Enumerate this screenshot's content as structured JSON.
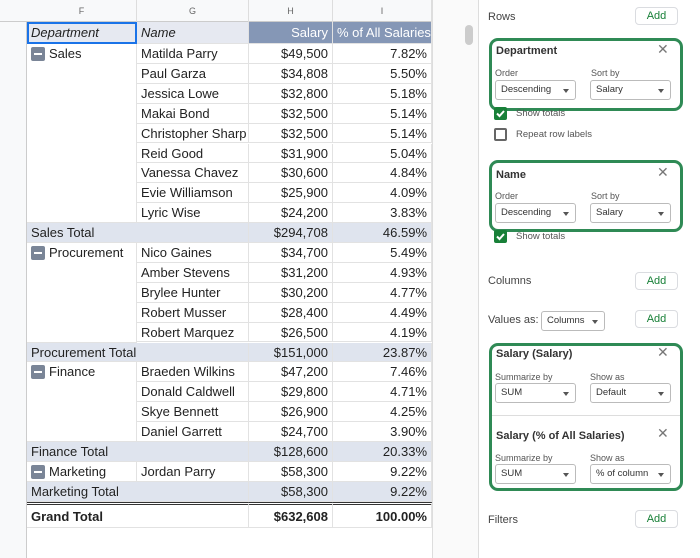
{
  "sheet": {
    "column_letters": [
      "F",
      "G",
      "H",
      "I"
    ],
    "header": [
      "Department",
      "Name",
      "Salary",
      "% of All Salaries"
    ],
    "groups": [
      {
        "department": "Sales",
        "rows": [
          [
            "Matilda Parry",
            "$49,500",
            "7.82%"
          ],
          [
            "Paul Garza",
            "$34,808",
            "5.50%"
          ],
          [
            "Jessica Lowe",
            "$32,800",
            "5.18%"
          ],
          [
            "Makai Bond",
            "$32,500",
            "5.14%"
          ],
          [
            "Christopher Sharp",
            "$32,500",
            "5.14%"
          ],
          [
            "Reid Good",
            "$31,900",
            "5.04%"
          ],
          [
            "Vanessa Chavez",
            "$30,600",
            "4.84%"
          ],
          [
            "Evie Williamson",
            "$25,900",
            "4.09%"
          ],
          [
            "Lyric Wise",
            "$24,200",
            "3.83%"
          ]
        ],
        "total": [
          "Sales Total",
          "$294,708",
          "46.59%"
        ]
      },
      {
        "department": "Procurement",
        "rows": [
          [
            "Nico Gaines",
            "$34,700",
            "5.49%"
          ],
          [
            "Amber Stevens",
            "$31,200",
            "4.93%"
          ],
          [
            "Brylee Hunter",
            "$30,200",
            "4.77%"
          ],
          [
            "Robert Musser",
            "$28,400",
            "4.49%"
          ],
          [
            "Robert Marquez",
            "$26,500",
            "4.19%"
          ]
        ],
        "total": [
          "Procurement Total",
          "$151,000",
          "23.87%"
        ]
      },
      {
        "department": "Finance",
        "rows": [
          [
            "Braeden Wilkins",
            "$47,200",
            "7.46%"
          ],
          [
            "Donald Caldwell",
            "$29,800",
            "4.71%"
          ],
          [
            "Skye Bennett",
            "$26,900",
            "4.25%"
          ],
          [
            "Daniel Garrett",
            "$24,700",
            "3.90%"
          ]
        ],
        "total": [
          "Finance Total",
          "$128,600",
          "20.33%"
        ]
      },
      {
        "department": "Marketing",
        "rows": [
          [
            "Jordan Parry",
            "$58,300",
            "9.22%"
          ]
        ],
        "total": [
          "Marketing Total",
          "$58,300",
          "9.22%"
        ]
      }
    ],
    "grand_total": [
      "Grand Total",
      "$632,608",
      "100.00%"
    ]
  },
  "editor": {
    "rows": {
      "title": "Rows",
      "add": "Add",
      "fields": [
        {
          "name": "Department",
          "order_label": "Order",
          "order": "Descending",
          "sort_label": "Sort by",
          "sort": "Salary",
          "show_totals": "Show totals",
          "repeat_labels": "Repeat row labels"
        },
        {
          "name": "Name",
          "order_label": "Order",
          "order": "Descending",
          "sort_label": "Sort by",
          "sort": "Salary",
          "show_totals": "Show totals"
        }
      ]
    },
    "columns": {
      "title": "Columns",
      "add": "Add"
    },
    "values": {
      "label": "Values as:",
      "mode": "Columns",
      "add": "Add",
      "fields": [
        {
          "name": "Salary (Salary)",
          "summarize_label": "Summarize by",
          "summarize": "SUM",
          "show_as_label": "Show as",
          "show_as": "Default"
        },
        {
          "name": "Salary (% of All Salaries)",
          "summarize_label": "Summarize by",
          "summarize": "SUM",
          "show_as_label": "Show as",
          "show_as": "% of column"
        }
      ]
    },
    "filters": {
      "title": "Filters",
      "add": "Add"
    }
  }
}
